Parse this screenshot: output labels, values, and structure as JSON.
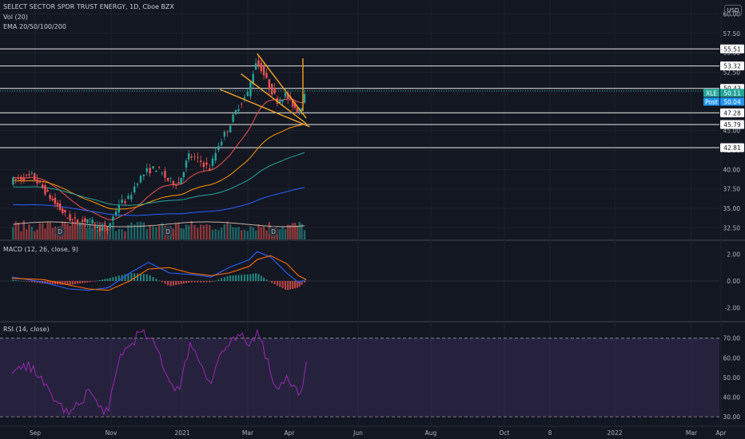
{
  "header": {
    "symbol_line": "SELECT SECTOR SPDR TRUST ENERGY, 1D, Cboe BZX",
    "vol_line": "Vol (20)",
    "ema_line": "EMA 20/50/100/200",
    "currency_button": "USD"
  },
  "panes": {
    "macd_title": "MACD (12, 26, close, 9)",
    "rsi_title": "RSI (14, close)"
  },
  "colors": {
    "background": "#131722",
    "bull": "#26a69a",
    "bear": "#ef5350",
    "trendline": "#f5a623",
    "macd": "#2962ff",
    "signal": "#ff6d00",
    "rsi": "#9c27b0",
    "ema20": "#ef5350",
    "ema50": "#ff9800",
    "ema100": "#26a69a",
    "ema200": "#2962ff"
  },
  "chart_data": [
    {
      "type": "candlestick",
      "title": "SELECT SECTOR SPDR TRUST ENERGY, 1D, Cboe BZX",
      "ticker": "XLE",
      "x_labels": [
        "Sep",
        "Nov",
        "2021",
        "Mar",
        "Apr",
        "Jun",
        "Aug",
        "Oct",
        "8",
        "2022",
        "Mar",
        "Apr"
      ],
      "y_ticks": [
        32.5,
        35.0,
        37.5,
        40.0,
        42.5,
        45.0,
        47.5,
        50.0,
        52.5,
        55.0,
        57.5,
        60.0
      ],
      "y_tick_labels": [
        "32.50",
        "35.00",
        "37.50",
        "40.00",
        "42.50",
        "45.00",
        "47.50",
        "50.00",
        "52.50",
        "55.00",
        "57.50",
        "60.00"
      ],
      "ylim": [
        31.0,
        61.8
      ],
      "horizontal_levels": [
        55.51,
        53.32,
        50.43,
        47.28,
        45.79,
        42.81
      ],
      "horizontal_level_labels": [
        "55.51",
        "53.32",
        "50.43",
        "47.28",
        "45.79",
        "42.81"
      ],
      "price_tags": [
        {
          "label": "XLE",
          "value": "50.11",
          "color": "#26a69a"
        },
        {
          "label": "Post",
          "value": "50.04",
          "color": "#2196f3"
        }
      ],
      "last_price": 50.11,
      "dividend_markers": [
        "D",
        "D",
        "D"
      ],
      "trendlines": [
        {
          "name": "upper wedge line",
          "from": [
            "2021-03-08",
            54.9
          ],
          "to": [
            "2021-04-16",
            46.6
          ]
        },
        {
          "name": "lower wedge line",
          "from": [
            "2021-02-04",
            50.3
          ],
          "to": [
            "2021-04-19",
            45.5
          ]
        },
        {
          "name": "upper wedge line 2",
          "from": [
            "2021-02-23",
            52.3
          ],
          "to": [
            "2021-04-16",
            45.9
          ]
        },
        {
          "name": "breakout spike",
          "from": [
            "2021-04-13",
            47.5
          ],
          "to": [
            "2021-04-13",
            54.3
          ]
        }
      ],
      "close_series": [
        {
          "date": "2020-08-20",
          "close": 38.5
        },
        {
          "date": "2020-08-31",
          "close": 39.2
        },
        {
          "date": "2020-09-08",
          "close": 37.6
        },
        {
          "date": "2020-09-18",
          "close": 35.6
        },
        {
          "date": "2020-09-28",
          "close": 33.8
        },
        {
          "date": "2020-10-06",
          "close": 33.2
        },
        {
          "date": "2020-10-14",
          "close": 33.6
        },
        {
          "date": "2020-10-22",
          "close": 32.6
        },
        {
          "date": "2020-10-30",
          "close": 32.2
        },
        {
          "date": "2020-11-09",
          "close": 35.6
        },
        {
          "date": "2020-11-17",
          "close": 36.2
        },
        {
          "date": "2020-11-25",
          "close": 38.6
        },
        {
          "date": "2020-12-03",
          "close": 39.8
        },
        {
          "date": "2020-12-11",
          "close": 40.2
        },
        {
          "date": "2020-12-21",
          "close": 38.6
        },
        {
          "date": "2020-12-30",
          "close": 38.2
        },
        {
          "date": "2021-01-08",
          "close": 41.8
        },
        {
          "date": "2021-01-19",
          "close": 41.0
        },
        {
          "date": "2021-01-27",
          "close": 40.1
        },
        {
          "date": "2021-02-04",
          "close": 43.2
        },
        {
          "date": "2021-02-12",
          "close": 45.2
        },
        {
          "date": "2021-02-22",
          "close": 48.2
        },
        {
          "date": "2021-03-02",
          "close": 49.8
        },
        {
          "date": "2021-03-08",
          "close": 53.9
        },
        {
          "date": "2021-03-12",
          "close": 53.0
        },
        {
          "date": "2021-03-18",
          "close": 50.6
        },
        {
          "date": "2021-03-24",
          "close": 48.9
        },
        {
          "date": "2021-03-30",
          "close": 49.6
        },
        {
          "date": "2021-04-05",
          "close": 48.4
        },
        {
          "date": "2021-04-09",
          "close": 47.6
        },
        {
          "date": "2021-04-13",
          "close": 48.3
        },
        {
          "date": "2021-04-16",
          "close": 50.11
        }
      ]
    },
    {
      "type": "bar",
      "title": "Vol (20)",
      "note": "volume bars along bottom of price pane, unlabeled"
    },
    {
      "type": "line",
      "title": "MACD (12, 26, close, 9)",
      "y_ticks": [
        2.0,
        0.0,
        -2.0
      ],
      "y_tick_labels": [
        "2.00",
        "0.00",
        "-2.00"
      ],
      "ylim": [
        -3.0,
        3.0
      ],
      "series": [
        {
          "name": "MACD",
          "values": [
            {
              "date": "2020-08-20",
              "value": 0.3
            },
            {
              "date": "2020-09-08",
              "value": -0.1
            },
            {
              "date": "2020-09-28",
              "value": -0.6
            },
            {
              "date": "2020-10-14",
              "value": -0.7
            },
            {
              "date": "2020-10-30",
              "value": -0.5
            },
            {
              "date": "2020-11-17",
              "value": 0.6
            },
            {
              "date": "2020-12-03",
              "value": 1.4
            },
            {
              "date": "2020-12-21",
              "value": 0.6
            },
            {
              "date": "2021-01-08",
              "value": 0.5
            },
            {
              "date": "2021-01-27",
              "value": 0.3
            },
            {
              "date": "2021-02-12",
              "value": 1.0
            },
            {
              "date": "2021-03-02",
              "value": 1.6
            },
            {
              "date": "2021-03-08",
              "value": 2.2
            },
            {
              "date": "2021-03-18",
              "value": 1.8
            },
            {
              "date": "2021-03-30",
              "value": 0.6
            },
            {
              "date": "2021-04-09",
              "value": -0.1
            },
            {
              "date": "2021-04-16",
              "value": 0.1
            }
          ]
        },
        {
          "name": "Signal",
          "values": [
            {
              "date": "2020-08-20",
              "value": 0.2
            },
            {
              "date": "2020-09-08",
              "value": 0.1
            },
            {
              "date": "2020-09-28",
              "value": -0.3
            },
            {
              "date": "2020-10-14",
              "value": -0.6
            },
            {
              "date": "2020-10-30",
              "value": -0.7
            },
            {
              "date": "2020-11-17",
              "value": 0.0
            },
            {
              "date": "2020-12-03",
              "value": 0.9
            },
            {
              "date": "2020-12-21",
              "value": 1.0
            },
            {
              "date": "2021-01-08",
              "value": 0.6
            },
            {
              "date": "2021-01-27",
              "value": 0.4
            },
            {
              "date": "2021-02-12",
              "value": 0.6
            },
            {
              "date": "2021-03-02",
              "value": 1.1
            },
            {
              "date": "2021-03-08",
              "value": 1.6
            },
            {
              "date": "2021-03-18",
              "value": 1.9
            },
            {
              "date": "2021-03-30",
              "value": 1.3
            },
            {
              "date": "2021-04-09",
              "value": 0.4
            },
            {
              "date": "2021-04-16",
              "value": 0.1
            }
          ]
        }
      ]
    },
    {
      "type": "line",
      "title": "RSI (14, close)",
      "y_ticks": [
        70,
        60,
        50,
        40,
        30
      ],
      "y_tick_labels": [
        "70.00",
        "60.00",
        "50.00",
        "40.00",
        "30.00"
      ],
      "ylim": [
        26,
        78
      ],
      "band": [
        30,
        70
      ],
      "series": [
        {
          "name": "RSI",
          "values": [
            {
              "date": "2020-08-20",
              "value": 52
            },
            {
              "date": "2020-08-31",
              "value": 56
            },
            {
              "date": "2020-09-08",
              "value": 46
            },
            {
              "date": "2020-09-18",
              "value": 38
            },
            {
              "date": "2020-09-28",
              "value": 31
            },
            {
              "date": "2020-10-06",
              "value": 36
            },
            {
              "date": "2020-10-14",
              "value": 44
            },
            {
              "date": "2020-10-22",
              "value": 35
            },
            {
              "date": "2020-10-30",
              "value": 33
            },
            {
              "date": "2020-11-09",
              "value": 62
            },
            {
              "date": "2020-11-17",
              "value": 66
            },
            {
              "date": "2020-11-25",
              "value": 73
            },
            {
              "date": "2020-12-03",
              "value": 70
            },
            {
              "date": "2020-12-11",
              "value": 64
            },
            {
              "date": "2020-12-21",
              "value": 48
            },
            {
              "date": "2020-12-30",
              "value": 44
            },
            {
              "date": "2021-01-08",
              "value": 68
            },
            {
              "date": "2021-01-19",
              "value": 56
            },
            {
              "date": "2021-01-27",
              "value": 47
            },
            {
              "date": "2021-02-04",
              "value": 62
            },
            {
              "date": "2021-02-12",
              "value": 66
            },
            {
              "date": "2021-02-22",
              "value": 71
            },
            {
              "date": "2021-03-02",
              "value": 66
            },
            {
              "date": "2021-03-08",
              "value": 74
            },
            {
              "date": "2021-03-12",
              "value": 68
            },
            {
              "date": "2021-03-18",
              "value": 52
            },
            {
              "date": "2021-03-24",
              "value": 44
            },
            {
              "date": "2021-03-30",
              "value": 51
            },
            {
              "date": "2021-04-05",
              "value": 46
            },
            {
              "date": "2021-04-09",
              "value": 41
            },
            {
              "date": "2021-04-13",
              "value": 46
            },
            {
              "date": "2021-04-16",
              "value": 58
            }
          ]
        }
      ]
    }
  ]
}
